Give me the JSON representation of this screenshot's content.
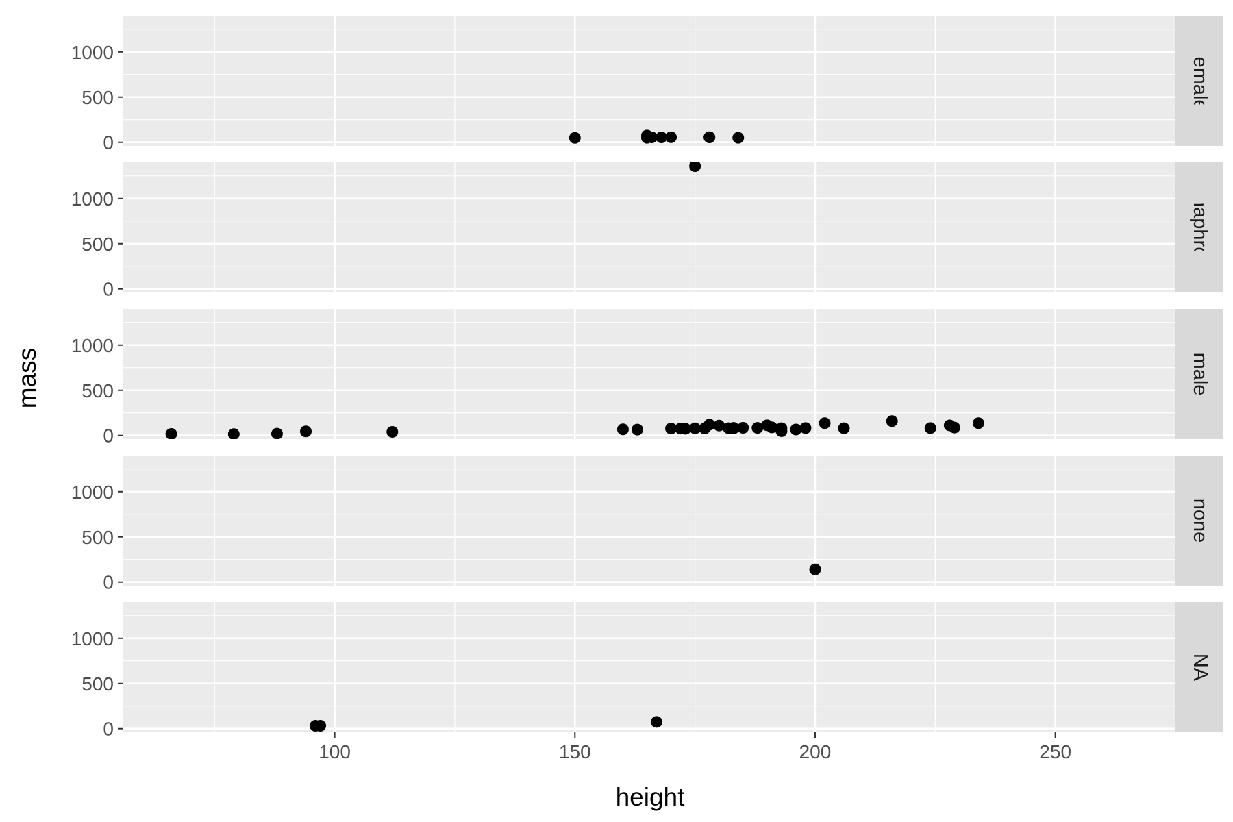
{
  "chart_data": {
    "type": "scatter",
    "xlabel": "height",
    "ylabel": "mass",
    "xlim": [
      56,
      275
    ],
    "ylim": [
      -40,
      1400
    ],
    "x_ticks": [
      100,
      150,
      200,
      250
    ],
    "y_ticks": [
      0,
      500,
      1000
    ],
    "grid": true,
    "facet_by": "sex",
    "facets": [
      {
        "label": "female",
        "points": [
          [
            150,
            49
          ],
          [
            165,
            75
          ],
          [
            165,
            50
          ],
          [
            166,
            55
          ],
          [
            168,
            55
          ],
          [
            170,
            56
          ],
          [
            178,
            55
          ],
          [
            178,
            57
          ],
          [
            184,
            50
          ]
        ]
      },
      {
        "label": "hermaphroditic",
        "points": [
          [
            175,
            1358
          ]
        ]
      },
      {
        "label": "male",
        "points": [
          [
            66,
            17
          ],
          [
            79,
            15
          ],
          [
            88,
            20
          ],
          [
            94,
            45
          ],
          [
            112,
            40
          ],
          [
            160,
            68
          ],
          [
            163,
            65
          ],
          [
            170,
            77
          ],
          [
            172,
            77
          ],
          [
            173,
            74
          ],
          [
            175,
            79
          ],
          [
            177,
            78
          ],
          [
            178,
            120
          ],
          [
            180,
            110
          ],
          [
            182,
            80
          ],
          [
            183,
            78
          ],
          [
            183,
            84
          ],
          [
            185,
            85
          ],
          [
            188,
            84
          ],
          [
            190,
            113
          ],
          [
            191,
            90
          ],
          [
            193,
            80
          ],
          [
            193,
            48
          ],
          [
            196,
            66
          ],
          [
            198,
            82
          ],
          [
            202,
            136
          ],
          [
            206,
            80
          ],
          [
            216,
            159
          ],
          [
            224,
            82
          ],
          [
            228,
            112
          ],
          [
            229,
            88
          ],
          [
            234,
            136
          ]
        ]
      },
      {
        "label": "none",
        "points": [
          [
            200,
            140
          ]
        ]
      },
      {
        "label": "NA",
        "points": [
          [
            96,
            32
          ],
          [
            97,
            32
          ],
          [
            167,
            75
          ]
        ]
      }
    ]
  }
}
